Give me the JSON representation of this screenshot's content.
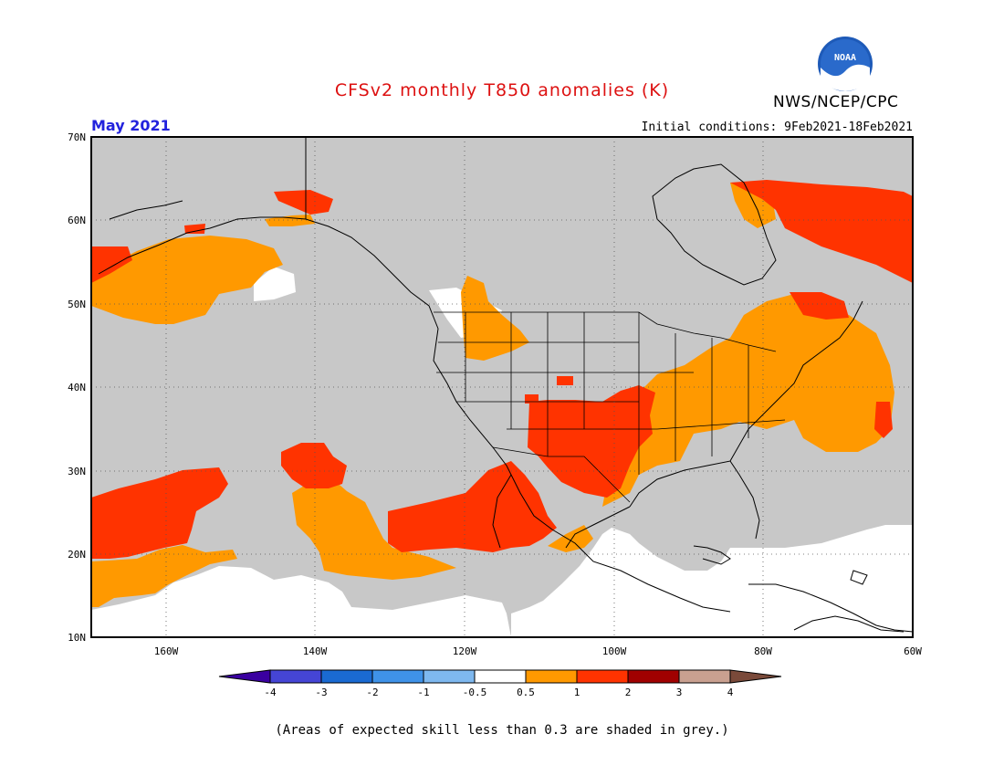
{
  "header": {
    "title": "CFSv2 monthly T850 anomalies (K)",
    "title_color": "#dd1111",
    "agency": "NWS/NCEP/CPC",
    "logo_text": "NOAA",
    "month": "May 2021",
    "month_color": "#2222dd",
    "initial_conditions": "Initial conditions: 9Feb2021-18Feb2021"
  },
  "map": {
    "lon_range": [
      -170,
      -60
    ],
    "lat_range": [
      10,
      70
    ],
    "lat_labels": [
      "70N",
      "60N",
      "50N",
      "40N",
      "30N",
      "20N",
      "10N"
    ],
    "lon_labels": [
      "160W",
      "140W",
      "120W",
      "100W",
      "80W",
      "60W"
    ],
    "background_color": "#c8c8c8"
  },
  "colorbar": {
    "tick_labels": [
      "-4",
      "-3",
      "-2",
      "-1",
      "-0.5",
      "0.5",
      "1",
      "2",
      "3",
      "4"
    ],
    "colors": [
      "#3a00a0",
      "#4545d5",
      "#1a6ad2",
      "#3f92e8",
      "#7eb8ef",
      "#ffffff",
      "#ff9900",
      "#ff3300",
      "#a00000",
      "#c9a090",
      "#7a4a3a"
    ]
  },
  "footnote": "(Areas of expected skill less than 0.3 are shaded in grey.)"
}
